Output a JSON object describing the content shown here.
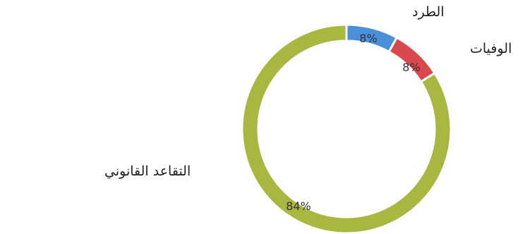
{
  "chart_data": {
    "type": "pie",
    "style": "donut",
    "categories": [
      "الطرد",
      "الوفيات",
      "التقاعد القانوني"
    ],
    "values": [
      8,
      8,
      84
    ],
    "value_labels": [
      "8%",
      "8%",
      "84%"
    ],
    "unit": "%",
    "colors": [
      "#4a90d9",
      "#d9484f",
      "#a9b63f"
    ],
    "legend": "none"
  }
}
